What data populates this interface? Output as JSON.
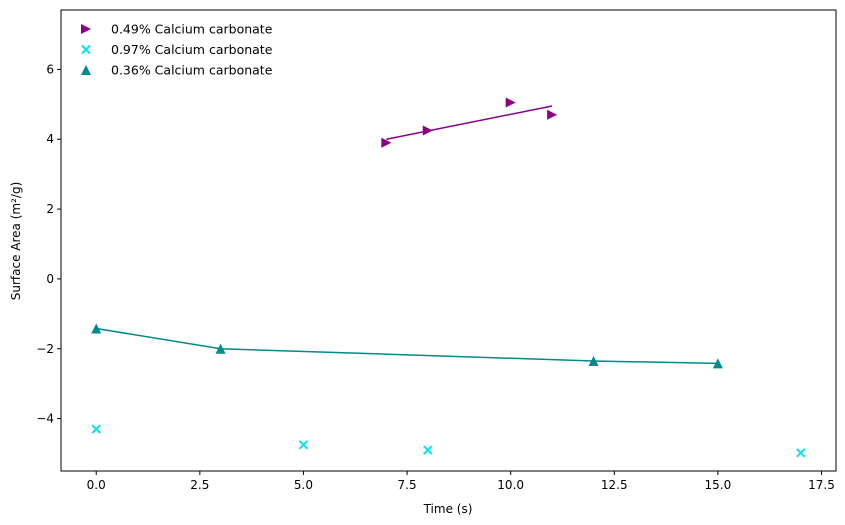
{
  "chart_data": {
    "type": "scatter",
    "title": "",
    "xlabel": "Time (s)",
    "ylabel": "Surface Area (m²/g)",
    "xlim": [
      -0.85,
      17.85
    ],
    "ylim": [
      -5.5,
      7.7
    ],
    "xticks": [
      0.0,
      2.5,
      5.0,
      7.5,
      10.0,
      12.5,
      15.0,
      17.5
    ],
    "xtick_labels": [
      "0.0",
      "2.5",
      "5.0",
      "7.5",
      "10.0",
      "12.5",
      "15.0",
      "17.5"
    ],
    "yticks": [
      -4,
      -2,
      0,
      2,
      4,
      6
    ],
    "ytick_labels": [
      "−4",
      "−2",
      "0",
      "2",
      "4",
      "6"
    ],
    "grid": false,
    "legend_position": "top-left",
    "series": [
      {
        "name": "0.49% Calcium carbonate",
        "marker": "triangle-right",
        "color": "#8b008b",
        "x": [
          7,
          8,
          10,
          11
        ],
        "y": [
          3.9,
          4.25,
          5.05,
          4.7
        ],
        "fit_line": {
          "x": [
            7,
            11
          ],
          "y": [
            4.0,
            4.95
          ]
        }
      },
      {
        "name": "0.97% Calcium carbonate",
        "marker": "x",
        "color": "#00e5ee",
        "x": [
          0,
          5,
          8,
          17
        ],
        "y": [
          -4.3,
          -4.75,
          -4.9,
          -4.98
        ]
      },
      {
        "name": "0.36% Calcium carbonate",
        "marker": "triangle-up",
        "color": "#008b8b",
        "x": [
          0,
          3,
          12,
          15
        ],
        "y": [
          -1.42,
          -2.0,
          -2.35,
          -2.42
        ],
        "fit_line": {
          "x": [
            0,
            3,
            12,
            15
          ],
          "y": [
            -1.42,
            -2.0,
            -2.35,
            -2.42
          ]
        }
      }
    ]
  }
}
